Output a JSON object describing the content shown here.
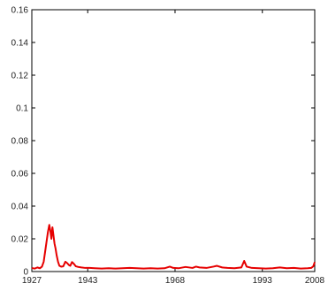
{
  "chart_data": {
    "type": "line",
    "title": "",
    "xlabel": "",
    "ylabel": "",
    "xlim": [
      1927,
      2008
    ],
    "ylim": [
      0,
      0.16
    ],
    "grid": false,
    "x_ticks": [
      "1927",
      "1943",
      "1968",
      "1993",
      "2008"
    ],
    "x_tick_values": [
      1927,
      1943,
      1968,
      1993,
      2008
    ],
    "y_ticks": [
      "0",
      "0.02",
      "0.04",
      "0.06",
      "0.08",
      "0.1",
      "0.12",
      "0.14",
      "0.16"
    ],
    "y_tick_values": [
      0,
      0.02,
      0.04,
      0.06,
      0.08,
      0.1,
      0.12,
      0.14,
      0.16
    ],
    "series": [
      {
        "color": "#e60000",
        "x": [
          1927,
          1927.8,
          1928.6,
          1929.3,
          1929.9,
          1930.4,
          1930.8,
          1931.2,
          1931.6,
          1932.0,
          1932.3,
          1932.6,
          1932.9,
          1933.2,
          1933.5,
          1933.8,
          1934.1,
          1934.5,
          1934.9,
          1935.4,
          1936.0,
          1936.6,
          1937.1,
          1937.6,
          1938.0,
          1938.5,
          1939.0,
          1939.6,
          1940.3,
          1941.2,
          1942.3,
          1943.5,
          1945,
          1947,
          1949,
          1951,
          1953,
          1955,
          1957,
          1959,
          1961,
          1963,
          1965,
          1966.5,
          1967.5,
          1969,
          1971,
          1973,
          1974,
          1975,
          1977,
          1979,
          1980,
          1981.5,
          1983,
          1985,
          1987,
          1987.8,
          1988.5,
          1990,
          1992,
          1994,
          1996,
          1998,
          2000,
          2002,
          2004,
          2006,
          2007,
          2007.6,
          2008
        ],
        "y": [
          0.0022,
          0.0018,
          0.0025,
          0.002,
          0.003,
          0.006,
          0.012,
          0.018,
          0.024,
          0.0285,
          0.025,
          0.02,
          0.027,
          0.022,
          0.017,
          0.014,
          0.01,
          0.006,
          0.0035,
          0.003,
          0.0032,
          0.006,
          0.0052,
          0.004,
          0.0035,
          0.0058,
          0.0048,
          0.0032,
          0.0028,
          0.0025,
          0.0022,
          0.0022,
          0.002,
          0.0018,
          0.002,
          0.0018,
          0.002,
          0.0022,
          0.002,
          0.0018,
          0.002,
          0.0018,
          0.002,
          0.003,
          0.0022,
          0.002,
          0.0028,
          0.0022,
          0.003,
          0.0025,
          0.0022,
          0.003,
          0.0035,
          0.0025,
          0.0022,
          0.002,
          0.0025,
          0.0065,
          0.003,
          0.0022,
          0.002,
          0.0018,
          0.002,
          0.0025,
          0.002,
          0.0022,
          0.0018,
          0.002,
          0.0022,
          0.0032,
          0.0058
        ]
      }
    ]
  }
}
